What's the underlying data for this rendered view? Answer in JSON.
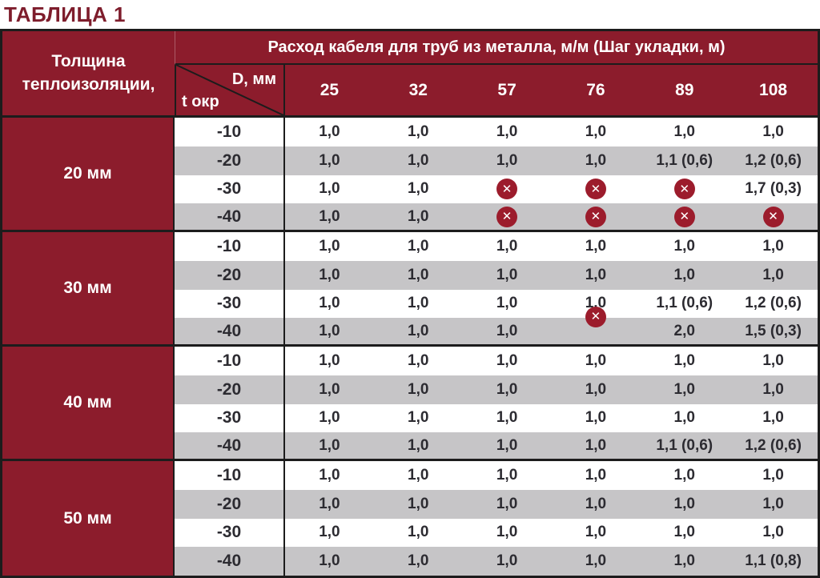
{
  "title": "ТАБЛИЦА 1",
  "colors": {
    "maroon": "#8c1c2c",
    "title_maroon": "#7e1d2c",
    "row_gray": "#c6c5c7",
    "text_dark": "#2c2b31",
    "icon_red": "#9c1c2c",
    "border_dark": "#1c1c1c"
  },
  "icon_glyph": "✕",
  "header": {
    "col1": "Толщина теплоизоляции,",
    "span": "Расход кабеля для труб из металла, м/м (Шаг укладки, м)",
    "diag_top": "D, мм",
    "diag_bottom": "t окр",
    "diameters": [
      "25",
      "32",
      "57",
      "76",
      "89",
      "108"
    ]
  },
  "sections": [
    {
      "label": "20 мм",
      "rows": [
        {
          "t": "-10",
          "values": [
            "1,0",
            "1,0",
            "1,0",
            "1,0",
            "1,0",
            "1,0"
          ]
        },
        {
          "t": "-20",
          "values": [
            "1,0",
            "1,0",
            "1,0",
            "1,0",
            "1,1 (0,6)",
            "1,2 (0,6)"
          ]
        },
        {
          "t": "-30",
          "values": [
            "1,0",
            "1,0",
            {
              "icon": "crossed-circle"
            },
            {
              "icon": "crossed-circle"
            },
            {
              "icon": "crossed-circle"
            },
            "1,7 (0,3)"
          ]
        },
        {
          "t": "-40",
          "values": [
            "1,0",
            "1,0",
            {
              "icon": "crossed-circle"
            },
            {
              "icon": "crossed-circle"
            },
            {
              "icon": "crossed-circle"
            },
            {
              "icon": "crossed-circle"
            }
          ]
        }
      ]
    },
    {
      "label": "30 мм",
      "rows": [
        {
          "t": "-10",
          "values": [
            "1,0",
            "1,0",
            "1,0",
            "1,0",
            "1,0",
            "1,0"
          ]
        },
        {
          "t": "-20",
          "values": [
            "1,0",
            "1,0",
            "1,0",
            "1,0",
            "1,0",
            "1,0"
          ]
        },
        {
          "t": "-30",
          "values": [
            "1,0",
            "1,0",
            "1,0",
            "1,0",
            "1,1 (0,6)",
            "1,2 (0,6)"
          ]
        },
        {
          "t": "-40",
          "values": [
            "1,0",
            "1,0",
            "1,0",
            {
              "icon": "crossed-circle",
              "shifted": true
            },
            "2,0",
            "1,5 (0,3)"
          ]
        }
      ]
    },
    {
      "label": "40 мм",
      "rows": [
        {
          "t": "-10",
          "values": [
            "1,0",
            "1,0",
            "1,0",
            "1,0",
            "1,0",
            "1,0"
          ]
        },
        {
          "t": "-20",
          "values": [
            "1,0",
            "1,0",
            "1,0",
            "1,0",
            "1,0",
            "1,0"
          ]
        },
        {
          "t": "-30",
          "values": [
            "1,0",
            "1,0",
            "1,0",
            "1,0",
            "1,0",
            "1,0"
          ]
        },
        {
          "t": "-40",
          "values": [
            "1,0",
            "1,0",
            "1,0",
            "1,0",
            "1,1 (0,6)",
            "1,2 (0,6)"
          ]
        }
      ]
    },
    {
      "label": "50 мм",
      "rows": [
        {
          "t": "-10",
          "values": [
            "1,0",
            "1,0",
            "1,0",
            "1,0",
            "1,0",
            "1,0"
          ]
        },
        {
          "t": "-20",
          "values": [
            "1,0",
            "1,0",
            "1,0",
            "1,0",
            "1,0",
            "1,0"
          ]
        },
        {
          "t": "-30",
          "values": [
            "1,0",
            "1,0",
            "1,0",
            "1,0",
            "1,0",
            "1,0"
          ]
        },
        {
          "t": "-40",
          "values": [
            "1,0",
            "1,0",
            "1,0",
            "1,0",
            "1,0",
            "1,1 (0,8)"
          ]
        }
      ]
    }
  ]
}
